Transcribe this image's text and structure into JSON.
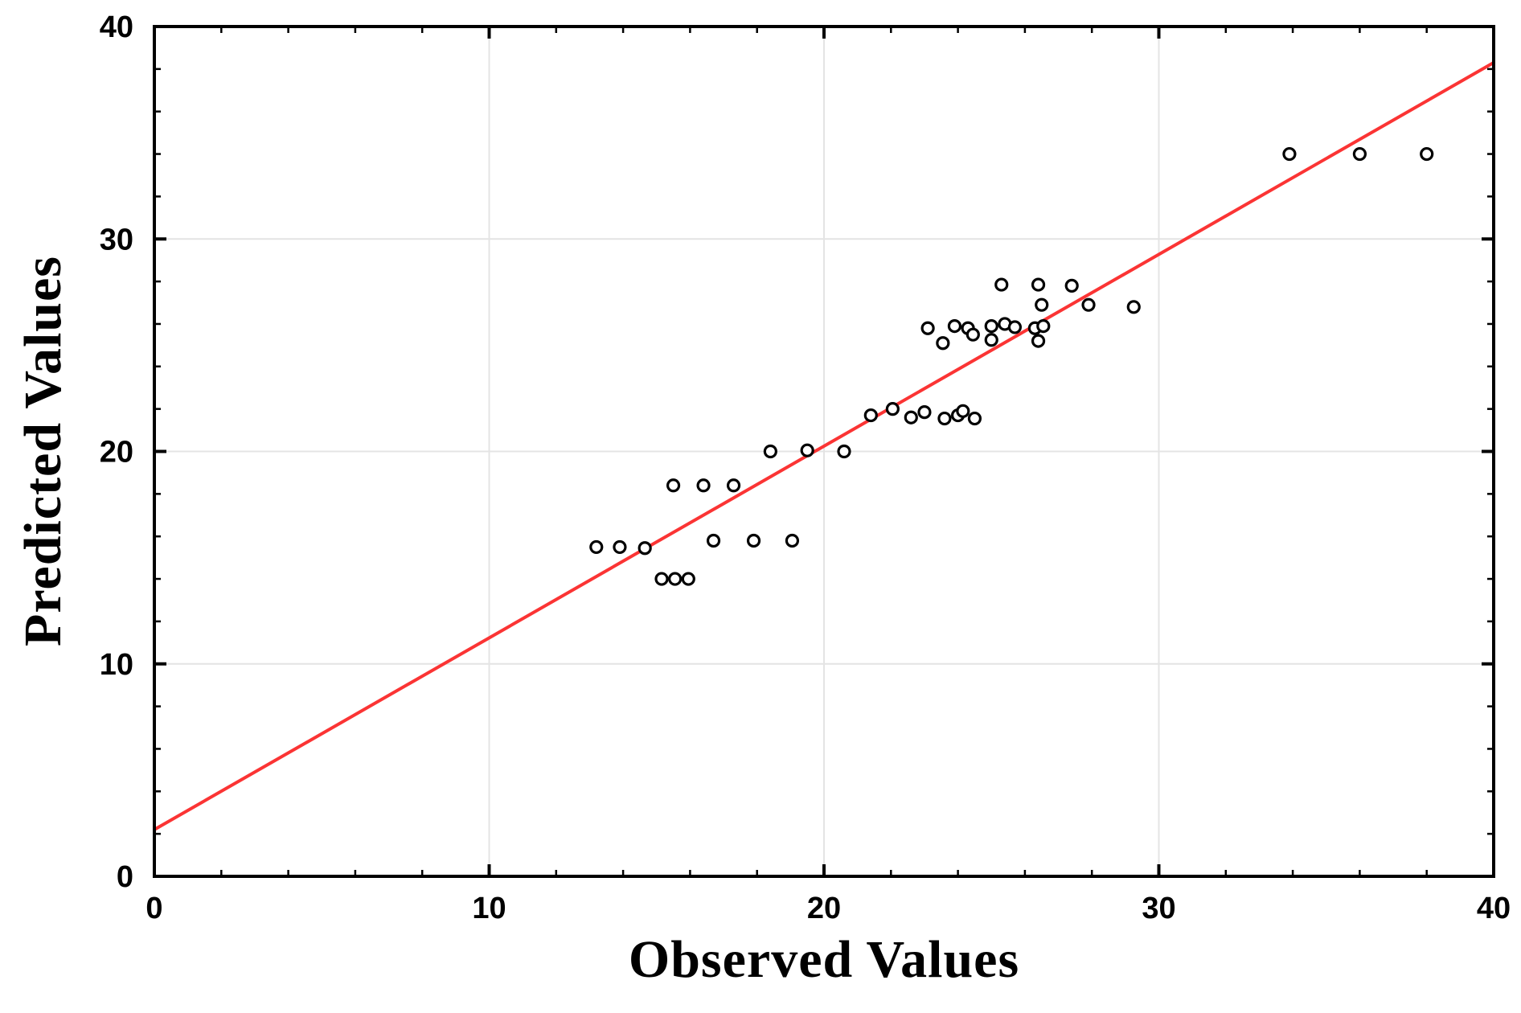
{
  "chart_data": {
    "type": "scatter",
    "title": "",
    "xlabel": "Observed Values",
    "ylabel": "Predicted Values",
    "xlim": [
      0,
      40
    ],
    "ylim": [
      0,
      40
    ],
    "x_major_ticks": [
      0,
      10,
      20,
      30,
      40
    ],
    "y_major_ticks": [
      0,
      10,
      20,
      30,
      40
    ],
    "minor_tick_step": 2,
    "gridline_values": [
      10,
      20,
      30
    ],
    "grid": true,
    "legend": "none",
    "points": [
      [
        13.2,
        15.5
      ],
      [
        13.9,
        15.5
      ],
      [
        14.65,
        15.45
      ],
      [
        15.15,
        14.0
      ],
      [
        15.55,
        14.0
      ],
      [
        15.95,
        14.0
      ],
      [
        15.5,
        18.4
      ],
      [
        16.4,
        18.4
      ],
      [
        17.3,
        18.4
      ],
      [
        16.7,
        15.8
      ],
      [
        17.9,
        15.8
      ],
      [
        19.05,
        15.8
      ],
      [
        18.4,
        20.0
      ],
      [
        19.5,
        20.05
      ],
      [
        20.6,
        20.0
      ],
      [
        21.4,
        21.7
      ],
      [
        22.05,
        22.0
      ],
      [
        22.6,
        21.6
      ],
      [
        23.0,
        21.85
      ],
      [
        23.6,
        21.55
      ],
      [
        24.0,
        21.7
      ],
      [
        24.15,
        21.9
      ],
      [
        24.5,
        21.55
      ],
      [
        23.1,
        25.8
      ],
      [
        23.55,
        25.1
      ],
      [
        23.9,
        25.9
      ],
      [
        24.3,
        25.8
      ],
      [
        24.45,
        25.5
      ],
      [
        25.0,
        25.9
      ],
      [
        25.0,
        25.25
      ],
      [
        25.4,
        26.0
      ],
      [
        25.7,
        25.85
      ],
      [
        26.3,
        25.8
      ],
      [
        26.55,
        25.9
      ],
      [
        26.4,
        25.2
      ],
      [
        25.3,
        27.85
      ],
      [
        26.4,
        27.85
      ],
      [
        27.4,
        27.8
      ],
      [
        26.5,
        26.9
      ],
      [
        27.9,
        26.9
      ],
      [
        29.25,
        26.8
      ],
      [
        33.9,
        34.0
      ],
      [
        36.0,
        34.0
      ],
      [
        38.0,
        34.0
      ]
    ],
    "trendline": {
      "x1": 0,
      "y1": 2.2,
      "x2": 40,
      "y2": 38.3
    },
    "colors": {
      "line": "#fb3434",
      "marker_stroke": "#000000",
      "marker_fill": "#ffffff",
      "grid": "#e4e4e4",
      "frame": "#000000",
      "text": "#000000"
    },
    "marker": {
      "radius": 7,
      "stroke_width": 3.2
    }
  }
}
